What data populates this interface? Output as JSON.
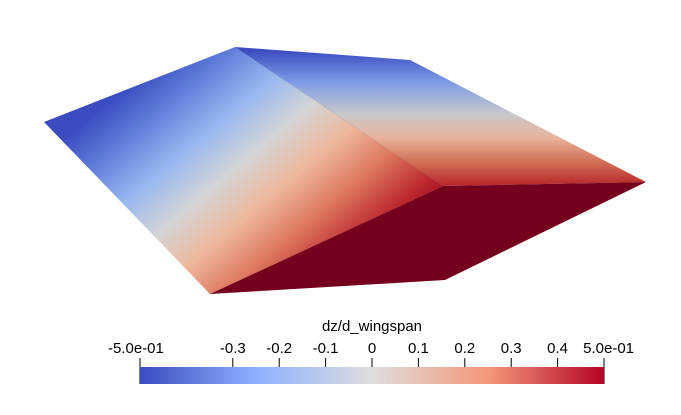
{
  "scalar_bar": {
    "title": "dz/d_wingspan",
    "range": [
      -0.5,
      0.5
    ],
    "colormap": "cool-to-warm",
    "colors": {
      "low": "#3b4cc0",
      "mid": "#dddddd",
      "high": "#b40426",
      "deep": "#75001d"
    },
    "ticks": [
      {
        "value": -0.5,
        "label": "-5.0e-01"
      },
      {
        "value": -0.3,
        "label": "-0.3"
      },
      {
        "value": -0.2,
        "label": "-0.2"
      },
      {
        "value": -0.1,
        "label": "-0.1"
      },
      {
        "value": 0.0,
        "label": "0"
      },
      {
        "value": 0.1,
        "label": "0.1"
      },
      {
        "value": 0.2,
        "label": "0.2"
      },
      {
        "value": 0.3,
        "label": "0.3"
      },
      {
        "value": 0.4,
        "label": "0.4"
      },
      {
        "value": 0.5,
        "label": "5.0e-01"
      }
    ]
  }
}
